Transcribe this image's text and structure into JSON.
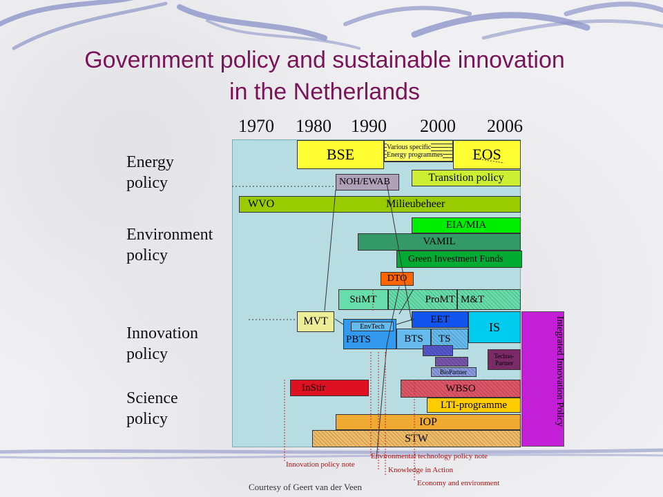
{
  "title": {
    "line1": "Government policy and sustainable innovation",
    "line2": "in the Netherlands"
  },
  "years": [
    "1970",
    "1980",
    "1990",
    "2000",
    "2006"
  ],
  "categories": {
    "energy": [
      "Energy",
      "policy"
    ],
    "environment": [
      "Environment",
      "policy"
    ],
    "innovation": [
      "Innovation",
      "policy"
    ],
    "science": [
      "Science",
      "policy"
    ]
  },
  "programmes": {
    "bse": "BSE",
    "various_1": "Various specific",
    "various_2": "Energy programmes",
    "eos": "EOS",
    "noh": "NOH/EWAB",
    "transition": "Transition policy",
    "wvo": "WVO",
    "milieu": "Milieubeheer",
    "eia": "EIA/MIA",
    "vamil": "VAMIL",
    "green": "Green Investment Funds",
    "dto": "DTO",
    "stimt": "StiMT",
    "promt": "ProMT",
    "mt": "M&T",
    "mvt": "MVT",
    "envtech": "EnvTech",
    "eet": "EET",
    "is": "IS",
    "pbts": "PBTS",
    "bts": "BTS",
    "ts": "TS",
    "technopartner": "Techno-Partner",
    "biopartner": "BioPartner",
    "instir": "InStir",
    "wbso": "WBSO",
    "lti": "LTI-programme",
    "iop": "IOP",
    "stw": "STW",
    "integrated": "Integrated Innovation Policy"
  },
  "notes": {
    "innovation_note": "Innovation policy note",
    "envtech_note": "Environmental technology policy note",
    "knowledge": "Knowledge in Action",
    "economy": "Economy and environment"
  },
  "courtesy": "Courtesy of Geert van der Veen",
  "colors": {
    "title": "#7a1458",
    "panel": "#b7dde3",
    "yellow": "#ffff33",
    "olive": "#99cc00",
    "green": "#00ee00",
    "dark_green": "#339966",
    "green2": "#00aa33",
    "orange": "#ff6600",
    "aqua": "#66ddaa",
    "khaki": "#eeee99",
    "blue_mid": "#3399ee",
    "light_blue": "#66bbee",
    "blue": "#1155ee",
    "cyan": "#00ccee",
    "red": "#dd1122",
    "gold": "#ffcc00",
    "amber": "#eeaa33",
    "tan": "#eebb66",
    "purple": "#c21fd6",
    "note_red": "#b01010"
  }
}
